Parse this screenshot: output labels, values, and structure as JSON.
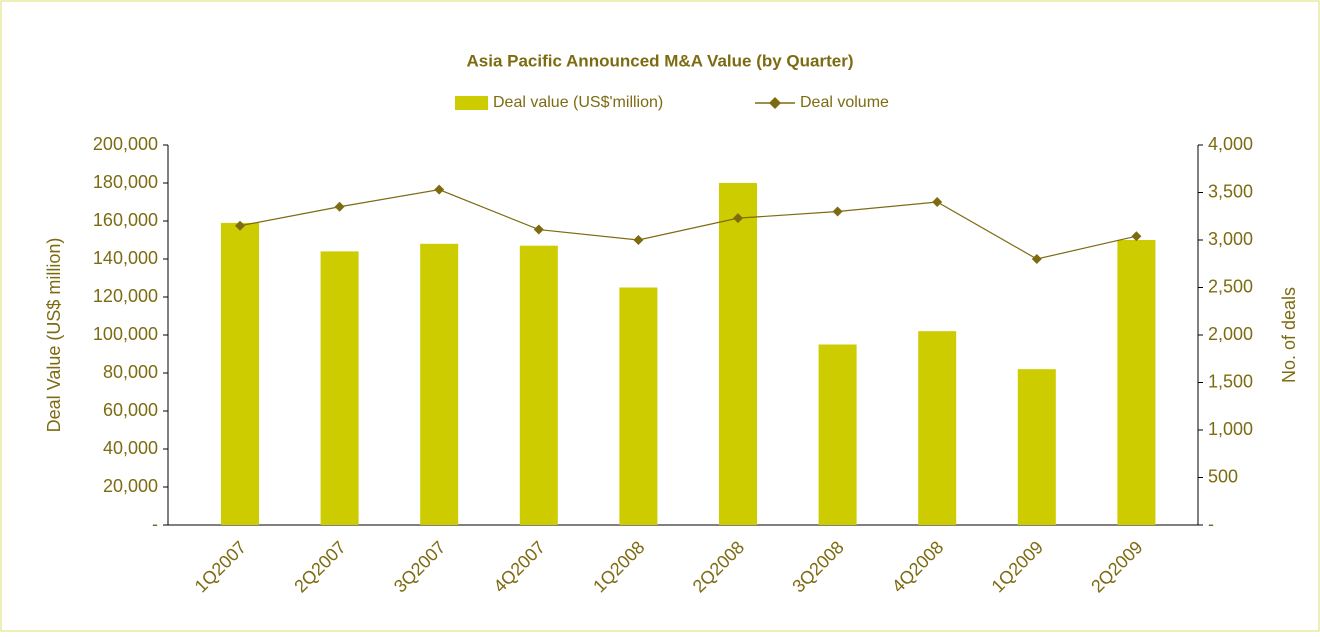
{
  "chart_data": {
    "type": "bar",
    "title": "Asia Pacific Announced M&A Value (by Quarter)",
    "y_label": "Deal Value (US$ million)",
    "y2_label": "No. of deals",
    "categories": [
      "1Q2007",
      "2Q2007",
      "3Q2007",
      "4Q2007",
      "1Q2008",
      "2Q2008",
      "3Q2008",
      "4Q2008",
      "1Q2009",
      "2Q2009"
    ],
    "series": [
      {
        "name": "Deal value (US$'million)",
        "type": "bar",
        "color": "#cccc00",
        "values": [
          159000,
          144000,
          148000,
          147000,
          125000,
          180000,
          95000,
          102000,
          82000,
          150000
        ]
      },
      {
        "name": "Deal volume",
        "type": "line",
        "axis": "y2",
        "color": "#7d6b12",
        "values": [
          3150,
          3350,
          3530,
          3110,
          3000,
          3230,
          3300,
          3400,
          2800,
          3040
        ]
      }
    ],
    "ylim": [
      0,
      200000
    ],
    "yticks": [
      {
        "value": 0,
        "label": "-"
      },
      {
        "value": 20000,
        "label": "20,000"
      },
      {
        "value": 40000,
        "label": "40,000"
      },
      {
        "value": 60000,
        "label": "60,000"
      },
      {
        "value": 80000,
        "label": "80,000"
      },
      {
        "value": 100000,
        "label": "100,000"
      },
      {
        "value": 120000,
        "label": "120,000"
      },
      {
        "value": 140000,
        "label": "140,000"
      },
      {
        "value": 160000,
        "label": "160,000"
      },
      {
        "value": 180000,
        "label": "180,000"
      },
      {
        "value": 200000,
        "label": "200,000"
      }
    ],
    "y2lim": [
      0,
      4000
    ],
    "y2ticks": [
      {
        "value": 0,
        "label": "-"
      },
      500,
      {
        "value": 1000,
        "label": "1,000"
      },
      {
        "value": 1500,
        "label": "1,500"
      },
      {
        "value": 2000,
        "label": "2,000"
      },
      {
        "value": 2500,
        "label": "2,500"
      },
      {
        "value": 3000,
        "label": "3,000"
      },
      {
        "value": 3500,
        "label": "3,500"
      },
      {
        "value": 4000,
        "label": "4,000"
      }
    ],
    "grid": false,
    "legend": "top"
  }
}
